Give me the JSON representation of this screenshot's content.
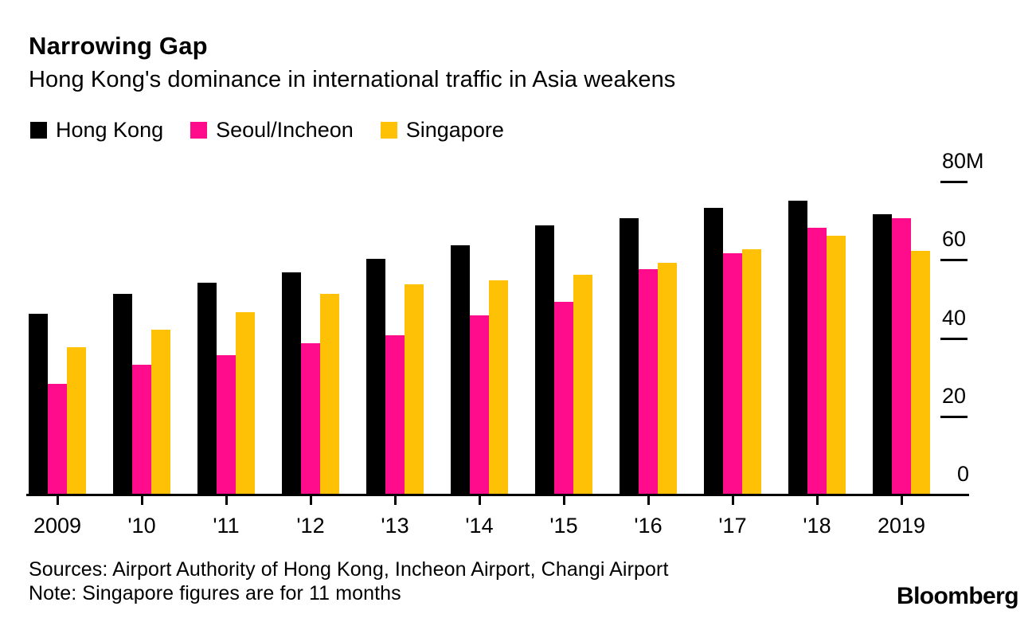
{
  "header": {
    "title": "Narrowing Gap",
    "subtitle": "Hong Kong's dominance in international traffic in Asia weakens"
  },
  "legend": [
    {
      "label": "Hong Kong",
      "color": "#000000"
    },
    {
      "label": "Seoul/Incheon",
      "color": "#ff0c8c"
    },
    {
      "label": "Singapore",
      "color": "#ffc105"
    }
  ],
  "chart_data": {
    "type": "bar",
    "title": "Narrowing Gap",
    "subtitle": "Hong Kong's dominance in international traffic in Asia weakens",
    "categories": [
      "2009",
      "'10",
      "'11",
      "'12",
      "'13",
      "'14",
      "'15",
      "'16",
      "'17",
      "'18",
      "2019"
    ],
    "series": [
      {
        "name": "Hong Kong",
        "color": "#000000",
        "values": [
          46,
          51,
          54,
          56.5,
          60,
          63.5,
          68.5,
          70.5,
          73,
          75,
          71.5
        ]
      },
      {
        "name": "Seoul/Incheon",
        "color": "#ff0c8c",
        "values": [
          28,
          33,
          35.5,
          38.5,
          40.5,
          45.5,
          49,
          57.5,
          61.5,
          68,
          70.5
        ]
      },
      {
        "name": "Singapore",
        "color": "#ffc105",
        "values": [
          37.5,
          42,
          46.5,
          51,
          53.5,
          54.5,
          56,
          59,
          62.5,
          66,
          62
        ]
      }
    ],
    "y_axis": {
      "ticks": [
        80,
        60,
        40,
        20,
        0
      ],
      "top_label": "80M",
      "ylim": [
        0,
        80
      ],
      "position": "right"
    },
    "legend_position": "top",
    "grid": false,
    "xlabel": "",
    "ylabel": ""
  },
  "footer": {
    "sources": "Sources: Airport Authority of Hong Kong, Incheon Airport, Changi Airport",
    "note": "Note: Singapore figures are for 11 months",
    "brand": "Bloomberg"
  }
}
